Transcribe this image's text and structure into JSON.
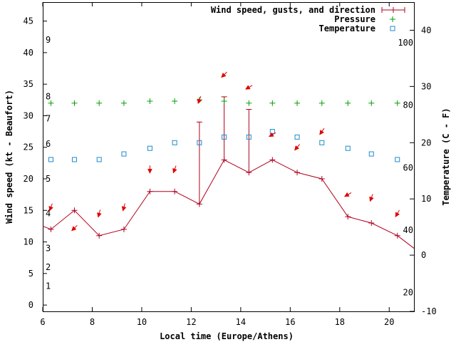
{
  "chart_data": {
    "type": "line",
    "xlabel": "Local time (Europe/Athens)",
    "ylabel_left": "Wind speed (kt - Beaufort)",
    "ylabel_right": "Temperature (C - F)",
    "xlim": [
      6,
      21
    ],
    "ylim_left": [
      -1,
      48
    ],
    "ylim_right_celsius": [
      -10,
      45
    ],
    "x_ticks": [
      "6",
      "8",
      "10",
      "12",
      "14",
      "16",
      "18",
      "20"
    ],
    "y_ticks_left": [
      "0",
      "5",
      "10",
      "15",
      "20",
      "25",
      "30",
      "35",
      "40",
      "45"
    ],
    "y_ticks_right_celsius": [
      "-10",
      "0",
      "10",
      "20",
      "30",
      "40"
    ],
    "beaufort_labels": [
      "1",
      "2",
      "3",
      "4",
      "5",
      "6",
      "7",
      "8",
      "9"
    ],
    "fahrenheit_labels": [
      "20",
      "40",
      "60",
      "80",
      "100"
    ],
    "legend": {
      "wind": "Wind speed, gusts, and direction",
      "pressure": "Pressure",
      "temperature": "Temperature"
    },
    "series": [
      {
        "name": "Wind speed",
        "unit": "kt",
        "x": [
          6,
          6.33,
          7.28,
          8.28,
          9.28,
          10.33,
          11.33,
          12.33,
          13.33,
          14.33,
          15.28,
          16.28,
          17.28,
          18.33,
          19.28,
          20.33,
          21
        ],
        "values": [
          12.5,
          12,
          15,
          11,
          12,
          18,
          18,
          16,
          23,
          21,
          23,
          21,
          20,
          14,
          13,
          11,
          9
        ]
      },
      {
        "name": "Gusts",
        "unit": "kt",
        "x": [
          12.33,
          13.33,
          14.33
        ],
        "values": [
          29,
          33,
          31
        ]
      },
      {
        "name": "Pressure",
        "x": [
          6.33,
          7.28,
          8.28,
          9.28,
          10.33,
          11.33,
          12.33,
          13.33,
          14.33,
          15.28,
          16.28,
          17.28,
          18.33,
          19.28,
          20.33
        ],
        "values": [
          32,
          32,
          32,
          32,
          32.3,
          32.3,
          32.5,
          32.3,
          32,
          32,
          32,
          32,
          32,
          32,
          32
        ]
      },
      {
        "name": "Temperature",
        "unit": "C",
        "x": [
          6.33,
          7.28,
          8.28,
          9.28,
          10.33,
          11.33,
          12.33,
          13.33,
          14.33,
          15.28,
          16.28,
          17.28,
          18.33,
          19.28,
          20.33
        ],
        "values": [
          17,
          17,
          17,
          18,
          19,
          20,
          20,
          21,
          21,
          22,
          21,
          20,
          19,
          18,
          17
        ]
      },
      {
        "name": "Wind direction",
        "unit": "degrees from",
        "x": [
          6.33,
          7.28,
          8.28,
          9.28,
          10.33,
          11.33,
          12.33,
          13.33,
          14.33,
          15.28,
          16.28,
          17.28,
          18.33,
          19.28,
          20.33
        ],
        "y": [
          15.5,
          12.2,
          14.5,
          15.5,
          21.5,
          21.5,
          32.5,
          36.5,
          34.5,
          27,
          25,
          27.5,
          17.5,
          17,
          14.5
        ],
        "values": [
          20,
          45,
          15,
          15,
          0,
          20,
          20,
          45,
          60,
          60,
          40,
          35,
          60,
          20,
          30
        ]
      }
    ]
  }
}
